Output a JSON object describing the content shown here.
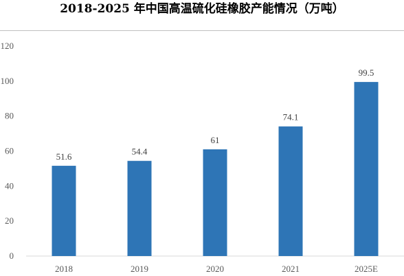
{
  "chart_data": {
    "type": "bar",
    "title": "2018-2025 年中国高温硫化硅橡胶产能情况（万吨）",
    "categories": [
      "2018",
      "2019",
      "2020",
      "2021",
      "2025E"
    ],
    "values": [
      51.6,
      54.4,
      61,
      74.1,
      99.5
    ],
    "data_labels": [
      "51.6",
      "54.4",
      "61",
      "74.1",
      "99.5"
    ],
    "ylim": [
      0,
      120
    ],
    "yticks": [
      0,
      20,
      40,
      60,
      80,
      100,
      120
    ],
    "grid": false,
    "legend": "none",
    "xlabel": "",
    "ylabel": "",
    "bar_color": "#2e75b6"
  }
}
